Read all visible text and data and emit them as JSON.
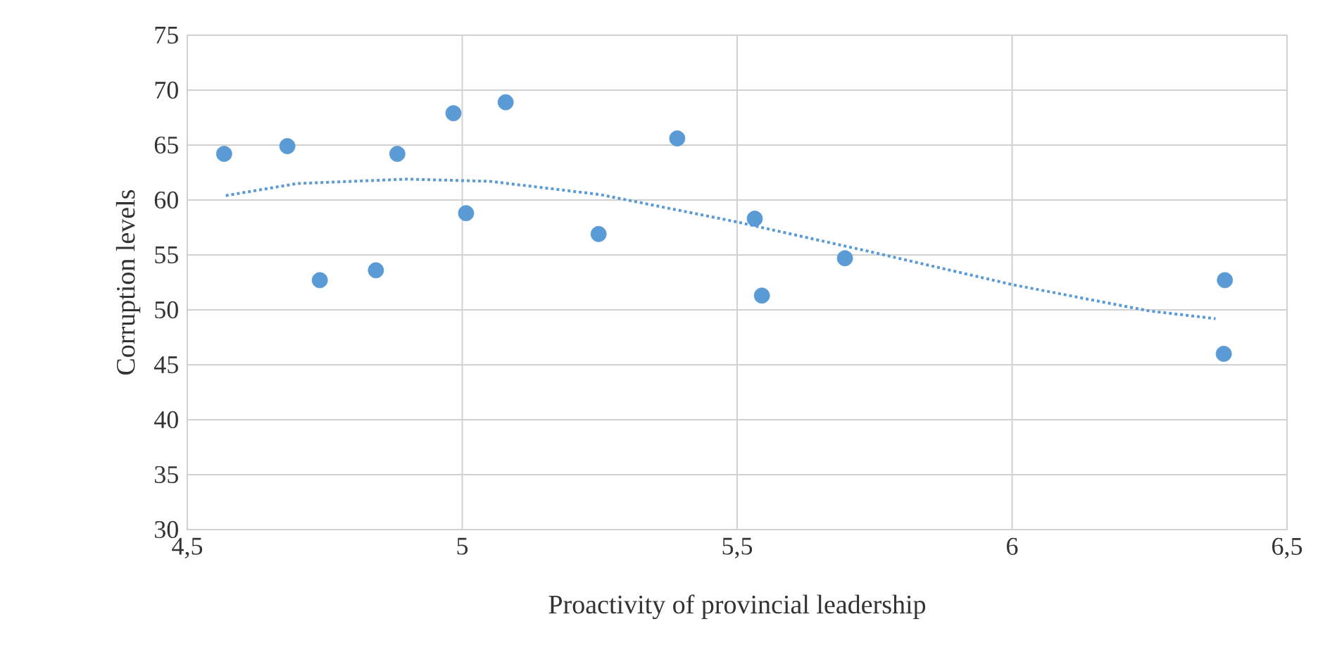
{
  "chart_data": {
    "type": "scatter",
    "xlabel": "Proactivity of provincial leadership",
    "ylabel": "Corruption levels",
    "xlim": [
      4.5,
      6.5
    ],
    "xticks": [
      {
        "value": 4.5,
        "label": "4,5"
      },
      5,
      {
        "value": 5.5,
        "label": "5,5"
      },
      6,
      {
        "value": 6.5,
        "label": "6,5"
      }
    ],
    "ylim": [
      30,
      75
    ],
    "yticks": [
      30,
      35,
      40,
      45,
      50,
      55,
      60,
      65,
      70,
      75
    ],
    "grid": true,
    "series": [
      {
        "color": "#5b9bd5",
        "marker": "circle",
        "x": [
          4.567,
          4.682,
          4.741,
          4.843,
          4.882,
          4.984,
          5.007,
          5.079,
          5.248,
          5.391,
          5.532,
          5.545,
          5.696,
          6.385,
          6.387
        ],
        "values": [
          64.2,
          64.9,
          52.7,
          53.6,
          64.2,
          67.9,
          58.8,
          68.9,
          56.9,
          65.6,
          58.3,
          51.3,
          54.7,
          46.0,
          52.7
        ]
      },
      {
        "type": "line",
        "color": "#5b9bd5",
        "marker": "none",
        "line_style": "dotted",
        "x": [
          4.57,
          4.7,
          4.9,
          5.05,
          5.25,
          5.5,
          5.75,
          6.0,
          6.25,
          6.37
        ],
        "values": [
          60.4,
          61.5,
          61.9,
          61.7,
          60.5,
          58.0,
          55.2,
          52.3,
          49.9,
          49.2
        ]
      }
    ]
  }
}
